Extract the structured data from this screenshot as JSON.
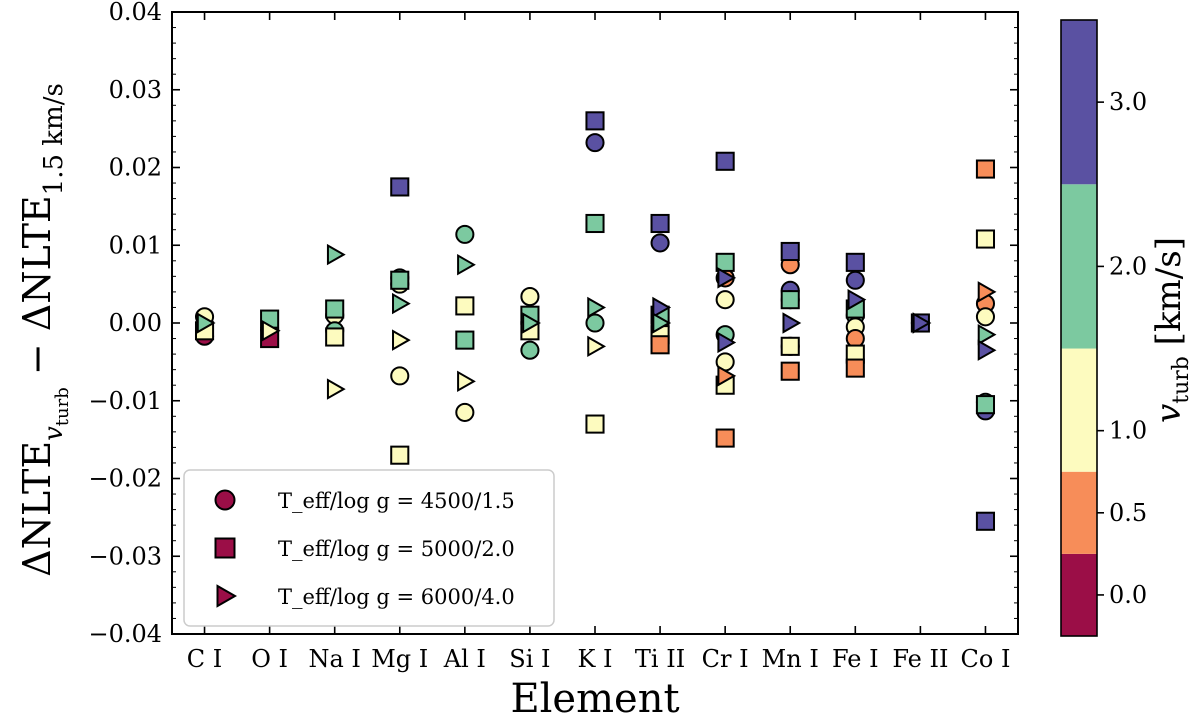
{
  "chart_data": {
    "type": "scatter",
    "xlabel": "Element",
    "ylabel": "ΔNLTE_{v_turb} − ΔNLTE_{1.5 km/s}",
    "ylim": [
      -0.04,
      0.04
    ],
    "yticks": [
      -0.04,
      -0.03,
      -0.02,
      -0.01,
      0.0,
      0.01,
      0.02,
      0.03,
      0.04
    ],
    "ytick_labels": [
      "−0.04",
      "−0.03",
      "−0.02",
      "−0.01",
      "0.00",
      "0.01",
      "0.02",
      "0.03",
      "0.04"
    ],
    "categories": [
      "C I",
      "O I",
      "Na I",
      "Mg I",
      "Al I",
      "Si I",
      "K I",
      "Ti II",
      "Cr I",
      "Mn I",
      "Fe I",
      "Fe II",
      "Co I"
    ],
    "colorbar": {
      "label": "v_turb [km/s]",
      "range": [
        -0.25,
        3.5
      ],
      "ticks": [
        0.0,
        0.5,
        1.0,
        2.0,
        3.0
      ],
      "tick_labels": [
        "0.0",
        "0.5",
        "1.0",
        "2.0",
        "3.0"
      ],
      "bands": [
        {
          "from": -0.25,
          "to": 0.25,
          "color": "#9b0e47"
        },
        {
          "from": 0.25,
          "to": 0.75,
          "color": "#f78d59"
        },
        {
          "from": 0.75,
          "to": 1.5,
          "color": "#fdfbbf"
        },
        {
          "from": 1.5,
          "to": 2.5,
          "color": "#7cc9a0"
        },
        {
          "from": 2.5,
          "to": 3.5,
          "color": "#5a51a2"
        }
      ]
    },
    "legend": {
      "position": "lower-left",
      "entries": [
        {
          "marker": "circle",
          "label_main": "T_eff/log g = 4500/1.5"
        },
        {
          "marker": "square",
          "label_main": "T_eff/log g = 5000/2.0"
        },
        {
          "marker": "triangle",
          "label_main": "T_eff/log g = 6000/4.0"
        }
      ]
    },
    "series": [
      {
        "marker": "circle",
        "points": [
          {
            "x": "C I",
            "y": 0.0008,
            "vturb": 1.0
          },
          {
            "x": "C I",
            "y": -0.0017,
            "vturb": 0.0
          },
          {
            "x": "O I",
            "y": -0.0008,
            "vturb": 1.0
          },
          {
            "x": "Na I",
            "y": 0.001,
            "vturb": 1.0
          },
          {
            "x": "Na I",
            "y": -0.001,
            "vturb": 2.0
          },
          {
            "x": "Mg I",
            "y": 0.0058,
            "vturb": 2.0
          },
          {
            "x": "Mg I",
            "y": 0.005,
            "vturb": 1.0
          },
          {
            "x": "Mg I",
            "y": -0.0068,
            "vturb": 1.0
          },
          {
            "x": "Al I",
            "y": 0.0114,
            "vturb": 2.0
          },
          {
            "x": "Al I",
            "y": -0.0115,
            "vturb": 1.0
          },
          {
            "x": "Si I",
            "y": 0.0034,
            "vturb": 1.0
          },
          {
            "x": "Si I",
            "y": -0.0035,
            "vturb": 2.0
          },
          {
            "x": "K I",
            "y": 0.0232,
            "vturb": 3.0
          },
          {
            "x": "K I",
            "y": 0.0,
            "vturb": 2.0
          },
          {
            "x": "Ti II",
            "y": 0.0103,
            "vturb": 3.0
          },
          {
            "x": "Ti II",
            "y": 0.0002,
            "vturb": 1.0
          },
          {
            "x": "Ti II",
            "y": -0.0005,
            "vturb": 0.5
          },
          {
            "x": "Cr I",
            "y": 0.0058,
            "vturb": 0.5
          },
          {
            "x": "Cr I",
            "y": 0.003,
            "vturb": 1.0
          },
          {
            "x": "Cr I",
            "y": -0.0015,
            "vturb": 2.0
          },
          {
            "x": "Cr I",
            "y": -0.005,
            "vturb": 1.0
          },
          {
            "x": "Mn I",
            "y": 0.0075,
            "vturb": 0.5
          },
          {
            "x": "Mn I",
            "y": 0.0042,
            "vturb": 3.0
          },
          {
            "x": "Mn I",
            "y": 0.003,
            "vturb": 1.0
          },
          {
            "x": "Mn I",
            "y": -0.003,
            "vturb": 2.0
          },
          {
            "x": "Fe I",
            "y": 0.0055,
            "vturb": 3.0
          },
          {
            "x": "Fe I",
            "y": 0.001,
            "vturb": 2.0
          },
          {
            "x": "Fe I",
            "y": -0.0005,
            "vturb": 1.0
          },
          {
            "x": "Fe I",
            "y": -0.002,
            "vturb": 0.5
          },
          {
            "x": "Fe II",
            "y": 0.0,
            "vturb": 3.0
          },
          {
            "x": "Co I",
            "y": 0.0025,
            "vturb": 0.5
          },
          {
            "x": "Co I",
            "y": 0.0008,
            "vturb": 1.0
          },
          {
            "x": "Co I",
            "y": -0.0102,
            "vturb": 2.0
          },
          {
            "x": "Co I",
            "y": -0.0113,
            "vturb": 3.0
          }
        ]
      },
      {
        "marker": "square",
        "points": [
          {
            "x": "C I",
            "y": -0.001,
            "vturb": 1.0
          },
          {
            "x": "O I",
            "y": 0.0005,
            "vturb": 2.0
          },
          {
            "x": "O I",
            "y": -0.002,
            "vturb": 0.0
          },
          {
            "x": "Na I",
            "y": 0.0018,
            "vturb": 2.0
          },
          {
            "x": "Na I",
            "y": -0.0018,
            "vturb": 1.0
          },
          {
            "x": "Mg I",
            "y": 0.0175,
            "vturb": 3.0
          },
          {
            "x": "Mg I",
            "y": 0.0055,
            "vturb": 2.0
          },
          {
            "x": "Mg I",
            "y": -0.017,
            "vturb": 1.0
          },
          {
            "x": "Al I",
            "y": 0.0022,
            "vturb": 1.0
          },
          {
            "x": "Al I",
            "y": -0.0022,
            "vturb": 2.0
          },
          {
            "x": "Si I",
            "y": 0.001,
            "vturb": 2.0
          },
          {
            "x": "Si I",
            "y": -0.001,
            "vturb": 1.0
          },
          {
            "x": "K I",
            "y": 0.026,
            "vturb": 3.0
          },
          {
            "x": "K I",
            "y": 0.0128,
            "vturb": 2.0
          },
          {
            "x": "K I",
            "y": -0.013,
            "vturb": 1.0
          },
          {
            "x": "Ti II",
            "y": 0.0128,
            "vturb": 3.0
          },
          {
            "x": "Ti II",
            "y": 0.001,
            "vturb": 2.0
          },
          {
            "x": "Ti II",
            "y": -0.0015,
            "vturb": 1.0
          },
          {
            "x": "Ti II",
            "y": -0.0028,
            "vturb": 0.5
          },
          {
            "x": "Cr I",
            "y": 0.0208,
            "vturb": 3.0
          },
          {
            "x": "Cr I",
            "y": 0.0078,
            "vturb": 2.0
          },
          {
            "x": "Cr I",
            "y": -0.008,
            "vturb": 1.0
          },
          {
            "x": "Cr I",
            "y": -0.0148,
            "vturb": 0.5
          },
          {
            "x": "Mn I",
            "y": 0.0092,
            "vturb": 3.0
          },
          {
            "x": "Mn I",
            "y": 0.003,
            "vturb": 2.0
          },
          {
            "x": "Mn I",
            "y": -0.003,
            "vturb": 1.0
          },
          {
            "x": "Mn I",
            "y": -0.0062,
            "vturb": 0.5
          },
          {
            "x": "Fe I",
            "y": 0.0078,
            "vturb": 3.0
          },
          {
            "x": "Fe I",
            "y": 0.0018,
            "vturb": 2.0
          },
          {
            "x": "Fe I",
            "y": -0.004,
            "vturb": 1.0
          },
          {
            "x": "Fe I",
            "y": -0.0058,
            "vturb": 0.5
          },
          {
            "x": "Fe II",
            "y": 0.0,
            "vturb": 3.0
          },
          {
            "x": "Co I",
            "y": 0.0198,
            "vturb": 0.5
          },
          {
            "x": "Co I",
            "y": 0.0108,
            "vturb": 1.0
          },
          {
            "x": "Co I",
            "y": -0.0105,
            "vturb": 2.0
          },
          {
            "x": "Co I",
            "y": -0.0255,
            "vturb": 3.0
          }
        ]
      },
      {
        "marker": "triangle",
        "points": [
          {
            "x": "C I",
            "y": 0.0,
            "vturb": 2.0
          },
          {
            "x": "O I",
            "y": -0.001,
            "vturb": 1.0
          },
          {
            "x": "Na I",
            "y": 0.0088,
            "vturb": 2.0
          },
          {
            "x": "Na I",
            "y": -0.0085,
            "vturb": 1.0
          },
          {
            "x": "Mg I",
            "y": 0.0025,
            "vturb": 2.0
          },
          {
            "x": "Mg I",
            "y": -0.0022,
            "vturb": 1.0
          },
          {
            "x": "Al I",
            "y": 0.0075,
            "vturb": 2.0
          },
          {
            "x": "Al I",
            "y": -0.0075,
            "vturb": 1.0
          },
          {
            "x": "Si I",
            "y": 0.0,
            "vturb": 2.0
          },
          {
            "x": "K I",
            "y": 0.002,
            "vturb": 2.0
          },
          {
            "x": "K I",
            "y": -0.003,
            "vturb": 1.0
          },
          {
            "x": "Ti II",
            "y": 0.002,
            "vturb": 3.0
          },
          {
            "x": "Ti II",
            "y": 0.0,
            "vturb": 2.0
          },
          {
            "x": "Cr I",
            "y": 0.0058,
            "vturb": 3.0
          },
          {
            "x": "Cr I",
            "y": -0.0025,
            "vturb": 3.0
          },
          {
            "x": "Cr I",
            "y": -0.0068,
            "vturb": 0.5
          },
          {
            "x": "Mn I",
            "y": 0.0,
            "vturb": 3.0
          },
          {
            "x": "Fe I",
            "y": 0.003,
            "vturb": 3.0
          },
          {
            "x": "Fe II",
            "y": 0.0,
            "vturb": 3.0
          },
          {
            "x": "Co I",
            "y": 0.004,
            "vturb": 0.5
          },
          {
            "x": "Co I",
            "y": -0.0015,
            "vturb": 2.0
          },
          {
            "x": "Co I",
            "y": -0.0035,
            "vturb": 3.0
          }
        ]
      }
    ]
  }
}
